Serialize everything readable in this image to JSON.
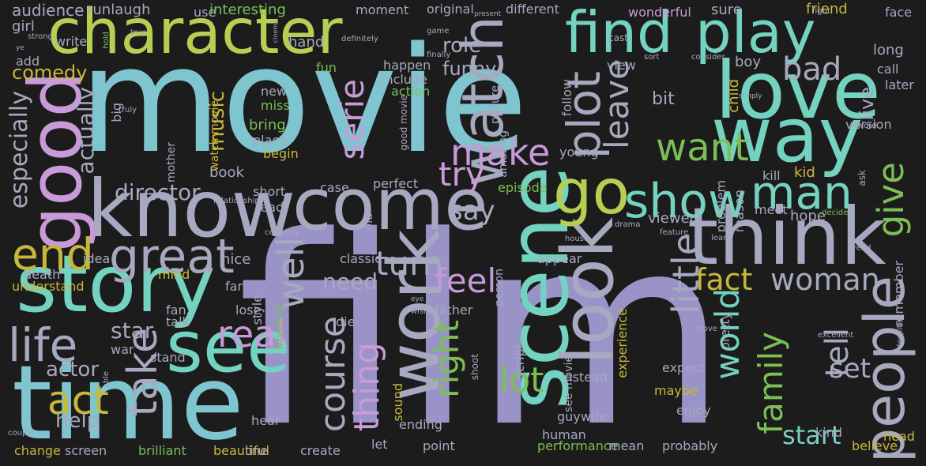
{
  "wordcloud": {
    "background": "#1c1c1c",
    "palette": {
      "blue": "#7fc5cf",
      "purple": "#9a93c8",
      "teal": "#74d3c0",
      "green": "#7bbf55",
      "lime": "#b5cf52",
      "yellow": "#c8b83a",
      "pink": "#c89ad8",
      "light": "#a6a9bf"
    },
    "words": [
      {
        "text": "movie",
        "color": "blue"
      },
      {
        "text": "film",
        "color": "purple"
      },
      {
        "text": "character",
        "color": "lime"
      },
      {
        "text": "time",
        "color": "blue"
      },
      {
        "text": "story",
        "color": "teal"
      },
      {
        "text": "find",
        "color": "teal"
      },
      {
        "text": "play",
        "color": "teal"
      },
      {
        "text": "love",
        "color": "teal"
      },
      {
        "text": "way",
        "color": "teal"
      },
      {
        "text": "good",
        "color": "pink"
      },
      {
        "text": "know",
        "color": "light"
      },
      {
        "text": "come",
        "color": "light"
      },
      {
        "text": "think",
        "color": "light"
      },
      {
        "text": "scene",
        "color": "teal"
      },
      {
        "text": "see",
        "color": "teal"
      },
      {
        "text": "look",
        "color": "light"
      },
      {
        "text": "work",
        "color": "light"
      },
      {
        "text": "go",
        "color": "lime"
      },
      {
        "text": "show",
        "color": "teal"
      },
      {
        "text": "man",
        "color": "teal"
      },
      {
        "text": "end",
        "color": "yellow"
      },
      {
        "text": "great",
        "color": "light"
      },
      {
        "text": "life",
        "color": "light"
      },
      {
        "text": "act",
        "color": "yellow"
      },
      {
        "text": "people",
        "color": "light"
      },
      {
        "text": "take",
        "color": "light"
      },
      {
        "text": "watch",
        "color": "light"
      },
      {
        "text": "plot",
        "color": "light"
      },
      {
        "text": "make",
        "color": "pink"
      },
      {
        "text": "want",
        "color": "green"
      },
      {
        "text": "try",
        "color": "pink"
      },
      {
        "text": "turn",
        "color": "light"
      },
      {
        "text": "feel",
        "color": "pink"
      },
      {
        "text": "fact",
        "color": "yellow"
      },
      {
        "text": "woman",
        "color": "light"
      },
      {
        "text": "well",
        "color": "light"
      },
      {
        "text": "real",
        "color": "pink"
      },
      {
        "text": "course",
        "color": "light"
      },
      {
        "text": "thing",
        "color": "pink"
      },
      {
        "text": "right",
        "color": "green"
      },
      {
        "text": "lot",
        "color": "green"
      },
      {
        "text": "little",
        "color": "light"
      },
      {
        "text": "world",
        "color": "teal"
      },
      {
        "text": "family",
        "color": "green"
      },
      {
        "text": "tell",
        "color": "light"
      },
      {
        "text": "give",
        "color": "green"
      },
      {
        "text": "bad",
        "color": "light"
      },
      {
        "text": "leave",
        "color": "light"
      },
      {
        "text": "serie",
        "color": "pink"
      },
      {
        "text": "say",
        "color": "light"
      },
      {
        "text": "start",
        "color": "teal"
      },
      {
        "text": "set",
        "color": "light"
      },
      {
        "text": "live",
        "color": "light"
      },
      {
        "text": "need",
        "color": "light"
      },
      {
        "text": "director",
        "color": "light"
      },
      {
        "text": "actor",
        "color": "light"
      },
      {
        "text": "star",
        "color": "light"
      },
      {
        "text": "help",
        "color": "light"
      },
      {
        "text": "funny",
        "color": "light"
      },
      {
        "text": "role",
        "color": "light"
      },
      {
        "text": "comedy",
        "color": "yellow"
      },
      {
        "text": "actually",
        "color": "light"
      },
      {
        "text": "especially",
        "color": "light"
      },
      {
        "text": "audience",
        "color": "light"
      },
      {
        "text": "girl",
        "color": "light"
      },
      {
        "text": "runlaugh",
        "color": "light"
      },
      {
        "text": "use",
        "color": "light"
      },
      {
        "text": "interesting",
        "color": "green"
      },
      {
        "text": "moment",
        "color": "light"
      },
      {
        "text": "original",
        "color": "light"
      },
      {
        "text": "different",
        "color": "light"
      },
      {
        "text": "wonderful",
        "color": "pink"
      },
      {
        "text": "sure",
        "color": "light"
      },
      {
        "text": "friend",
        "color": "yellow"
      },
      {
        "text": "face",
        "color": "light"
      },
      {
        "text": "long",
        "color": "light"
      },
      {
        "text": "call",
        "color": "light"
      },
      {
        "text": "later",
        "color": "light"
      },
      {
        "text": "boy",
        "color": "light"
      },
      {
        "text": "child",
        "color": "yellow"
      },
      {
        "text": "bit",
        "color": "light"
      },
      {
        "text": "music",
        "color": "yellow"
      },
      {
        "text": "new",
        "color": "light"
      },
      {
        "text": "miss",
        "color": "green"
      },
      {
        "text": "bring",
        "color": "green"
      },
      {
        "text": "place",
        "color": "light"
      },
      {
        "text": "begin",
        "color": "yellow"
      },
      {
        "text": "book",
        "color": "light"
      },
      {
        "text": "big",
        "color": "light"
      },
      {
        "text": "happen",
        "color": "light"
      },
      {
        "text": "include",
        "color": "light"
      },
      {
        "text": "action",
        "color": "green"
      },
      {
        "text": "fun",
        "color": "green"
      },
      {
        "text": "hand",
        "color": "light"
      },
      {
        "text": "write",
        "color": "light"
      },
      {
        "text": "add",
        "color": "light"
      },
      {
        "text": "view",
        "color": "light"
      },
      {
        "text": "follow",
        "color": "light"
      },
      {
        "text": "young",
        "color": "light"
      },
      {
        "text": "kill",
        "color": "light"
      },
      {
        "text": "kid",
        "color": "yellow"
      },
      {
        "text": "version",
        "color": "light"
      },
      {
        "text": "meet",
        "color": "light"
      },
      {
        "text": "hope",
        "color": "light"
      },
      {
        "text": "viewer",
        "color": "light"
      },
      {
        "text": "episode",
        "color": "green"
      },
      {
        "text": "perfect",
        "color": "light"
      },
      {
        "text": "case",
        "color": "light"
      },
      {
        "text": "short",
        "color": "light"
      },
      {
        "text": "lead",
        "color": "light"
      },
      {
        "text": "nice",
        "color": "light"
      },
      {
        "text": "mind",
        "color": "yellow"
      },
      {
        "text": "understand",
        "color": "yellow"
      },
      {
        "text": "death",
        "color": "light"
      },
      {
        "text": "idea",
        "color": "light"
      },
      {
        "text": "far",
        "color": "light"
      },
      {
        "text": "lose",
        "color": "light"
      },
      {
        "text": "fan",
        "color": "light"
      },
      {
        "text": "talk",
        "color": "light"
      },
      {
        "text": "stand",
        "color": "light"
      },
      {
        "text": "war",
        "color": "light"
      },
      {
        "text": "die",
        "color": "light"
      },
      {
        "text": "classic",
        "color": "light"
      },
      {
        "text": "appear",
        "color": "light"
      },
      {
        "text": "father",
        "color": "light"
      },
      {
        "text": "style",
        "color": "light"
      },
      {
        "text": "involve",
        "color": "green"
      },
      {
        "text": "sound",
        "color": "yellow"
      },
      {
        "text": "script",
        "color": "light"
      },
      {
        "text": "experience",
        "color": "yellow"
      },
      {
        "text": "instead",
        "color": "light"
      },
      {
        "text": "expect",
        "color": "light"
      },
      {
        "text": "maybe",
        "color": "yellow"
      },
      {
        "text": "enjoy",
        "color": "light"
      },
      {
        "text": "guy",
        "color": "light"
      },
      {
        "text": "wife",
        "color": "light"
      },
      {
        "text": "human",
        "color": "light"
      },
      {
        "text": "head",
        "color": "yellow"
      },
      {
        "text": "kind",
        "color": "light"
      },
      {
        "text": "hear",
        "color": "light"
      },
      {
        "text": "ending",
        "color": "light"
      },
      {
        "text": "let",
        "color": "light"
      },
      {
        "text": "point",
        "color": "light"
      },
      {
        "text": "performance",
        "color": "green"
      },
      {
        "text": "mean",
        "color": "light"
      },
      {
        "text": "probably",
        "color": "light"
      },
      {
        "text": "believe",
        "color": "yellow"
      },
      {
        "text": "change",
        "color": "yellow"
      },
      {
        "text": "screen",
        "color": "light"
      },
      {
        "text": "brilliant",
        "color": "green"
      },
      {
        "text": "beautiful",
        "color": "yellow"
      },
      {
        "text": "line",
        "color": "light"
      },
      {
        "text": "create",
        "color": "light"
      },
      {
        "text": "remember",
        "color": "light"
      },
      {
        "text": "problem",
        "color": "light"
      },
      {
        "text": "reason",
        "color": "light"
      },
      {
        "text": "pretty",
        "color": "light"
      },
      {
        "text": "old",
        "color": "light"
      },
      {
        "text": "amazing",
        "color": "light"
      },
      {
        "text": "picture",
        "color": "light"
      },
      {
        "text": "person",
        "color": "light"
      },
      {
        "text": "mother",
        "color": "light"
      },
      {
        "text": "watch movie",
        "color": "yellow"
      },
      {
        "text": "see movie",
        "color": "light"
      },
      {
        "text": "good movie",
        "color": "light"
      },
      {
        "text": "truly",
        "color": "light"
      },
      {
        "text": "hold",
        "color": "green"
      },
      {
        "text": "strong",
        "color": "light"
      },
      {
        "text": "true",
        "color": "light"
      },
      {
        "text": "ye",
        "color": "light"
      },
      {
        "text": "cinema",
        "color": "light"
      },
      {
        "text": "definitely",
        "color": "light"
      },
      {
        "text": "game",
        "color": "light"
      },
      {
        "text": "finally",
        "color": "light"
      },
      {
        "text": "present",
        "color": "light"
      },
      {
        "text": "cast",
        "color": "light"
      },
      {
        "text": "fight",
        "color": "light"
      },
      {
        "text": "sort",
        "color": "light"
      },
      {
        "text": "consider",
        "color": "light"
      },
      {
        "text": "simply",
        "color": "light"
      },
      {
        "text": "word",
        "color": "light"
      },
      {
        "text": "ask",
        "color": "light"
      },
      {
        "text": "decide",
        "color": "green"
      },
      {
        "text": "relationship",
        "color": "light"
      },
      {
        "text": "certainly",
        "color": "light"
      },
      {
        "text": "eye",
        "color": "light"
      },
      {
        "text": "wish",
        "color": "light"
      },
      {
        "text": "house",
        "color": "light"
      },
      {
        "text": "drama",
        "color": "light"
      },
      {
        "text": "feature",
        "color": "light"
      },
      {
        "text": "learn",
        "color": "light"
      },
      {
        "text": "move",
        "color": "light"
      },
      {
        "text": "read",
        "color": "light"
      },
      {
        "text": "despite",
        "color": "light"
      },
      {
        "text": "excellent",
        "color": "light"
      },
      {
        "text": "couple",
        "color": "light"
      },
      {
        "text": "able",
        "color": "light"
      },
      {
        "text": "shoot",
        "color": "light"
      },
      {
        "text": "sense",
        "color": "light"
      }
    ]
  }
}
